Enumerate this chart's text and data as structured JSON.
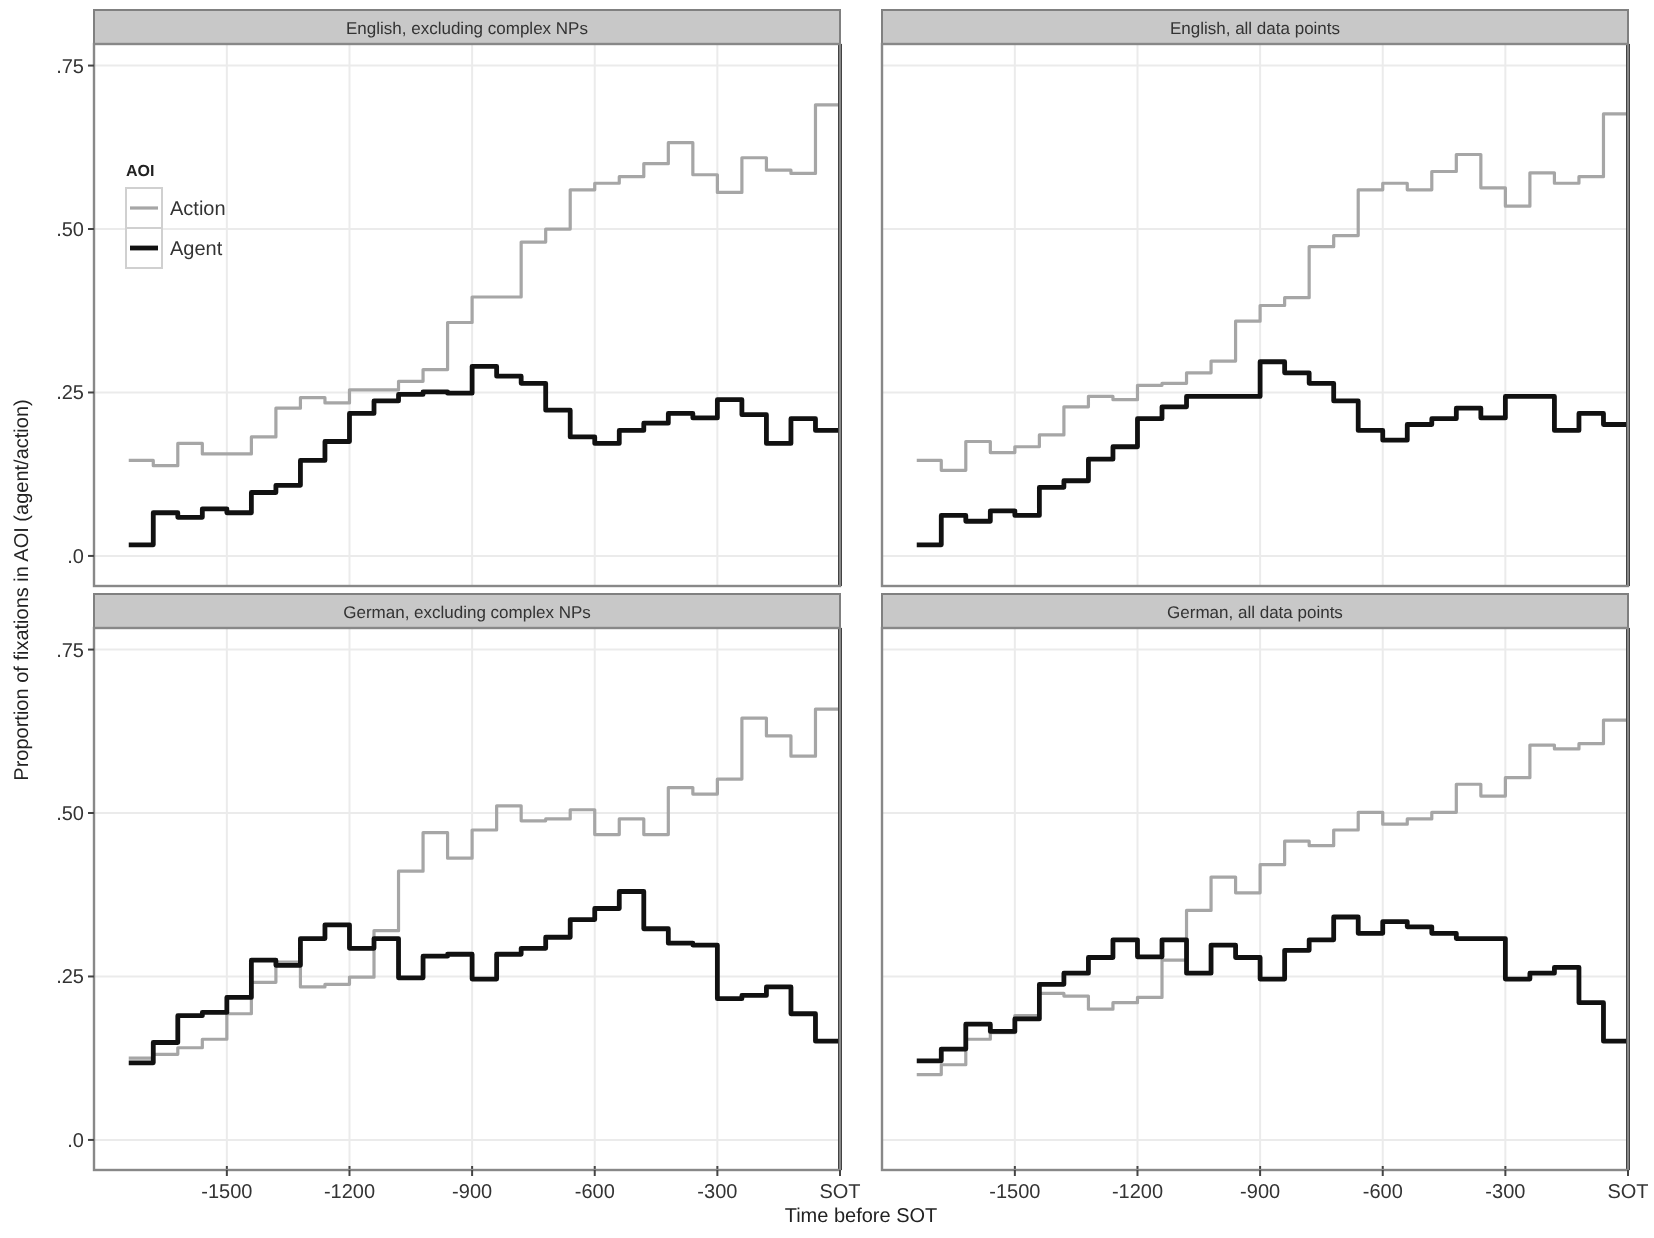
{
  "chart_data": [
    {
      "type": "step",
      "title": "English, excluding complex NPs",
      "ylabel": "Proportion of fixations in AOI (agent/action)",
      "legend_title": "AOI",
      "legend": "top left",
      "grid": true,
      "tick_labels": "y",
      "x": [
        -1740,
        -1680,
        -1620,
        -1560,
        -1500,
        -1440,
        -1380,
        -1320,
        -1260,
        -1200,
        -1140,
        -1080,
        -1020,
        -960,
        -900,
        -840,
        -780,
        -720,
        -660,
        -600,
        -540,
        -480,
        -420,
        -360,
        -300,
        -240,
        -180,
        -120,
        -60,
        0
      ],
      "xlim": [
        -1825,
        0
      ],
      "xticks": [
        -1500,
        -1200,
        -900,
        -600,
        -300
      ],
      "ylim": [
        -0.046,
        0.783
      ],
      "yticks": [
        {
          "value": 0,
          "label": ".0"
        },
        {
          "value": 0.25,
          "label": ".25"
        },
        {
          "value": 0.5,
          "label": ".50"
        },
        {
          "value": 0.75,
          "label": ".75"
        }
      ],
      "ref_lines": [
        {
          "axis": "x",
          "value": 0,
          "color": "#333333"
        }
      ],
      "series": [
        {
          "name": "Action",
          "color": "#a6a6a6",
          "values": [
            0.146,
            0.138,
            0.172,
            0.156,
            0.156,
            0.182,
            0.226,
            0.242,
            0.234,
            0.254,
            0.254,
            0.267,
            0.285,
            0.357,
            0.396,
            0.396,
            0.48,
            0.5,
            0.56,
            0.57,
            0.58,
            0.6,
            0.632,
            0.583,
            0.556,
            0.609,
            0.59,
            0.585,
            0.69,
            0.69
          ]
        },
        {
          "name": "Agent",
          "color": "#111111",
          "values": [
            0.017,
            0.066,
            0.059,
            0.072,
            0.066,
            0.097,
            0.108,
            0.146,
            0.175,
            0.218,
            0.237,
            0.247,
            0.251,
            0.249,
            0.29,
            0.275,
            0.264,
            0.223,
            0.182,
            0.172,
            0.192,
            0.203,
            0.218,
            0.211,
            0.239,
            0.216,
            0.172,
            0.21,
            0.192,
            0.192
          ]
        }
      ]
    },
    {
      "type": "step",
      "title": "English, all data points",
      "grid": true,
      "tick_labels": false,
      "x": [
        -1740,
        -1680,
        -1620,
        -1560,
        -1500,
        -1440,
        -1380,
        -1320,
        -1260,
        -1200,
        -1140,
        -1080,
        -1020,
        -960,
        -900,
        -840,
        -780,
        -720,
        -660,
        -600,
        -540,
        -480,
        -420,
        -360,
        -300,
        -240,
        -180,
        -120,
        -60,
        0
      ],
      "xlim": [
        -1825,
        0
      ],
      "xticks": [
        -1500,
        -1200,
        -900,
        -600,
        -300
      ],
      "ylim": [
        -0.046,
        0.783
      ],
      "yticks": [
        0,
        0.25,
        0.5,
        0.75
      ],
      "ref_lines": [
        {
          "axis": "x",
          "value": 0,
          "color": "#333333"
        }
      ],
      "series": [
        {
          "color": "#a6a6a6",
          "values": [
            0.146,
            0.131,
            0.175,
            0.158,
            0.167,
            0.185,
            0.228,
            0.244,
            0.239,
            0.261,
            0.264,
            0.28,
            0.298,
            0.359,
            0.383,
            0.395,
            0.473,
            0.49,
            0.56,
            0.57,
            0.56,
            0.588,
            0.614,
            0.563,
            0.535,
            0.586,
            0.57,
            0.58,
            0.676,
            0.676
          ]
        },
        {
          "color": "#111111",
          "values": [
            0.017,
            0.062,
            0.053,
            0.069,
            0.062,
            0.105,
            0.115,
            0.148,
            0.167,
            0.21,
            0.228,
            0.244,
            0.244,
            0.244,
            0.297,
            0.28,
            0.264,
            0.237,
            0.192,
            0.177,
            0.201,
            0.21,
            0.226,
            0.211,
            0.244,
            0.244,
            0.192,
            0.218,
            0.201,
            0.201
          ]
        }
      ]
    },
    {
      "type": "step",
      "title": "German, excluding complex NPs",
      "xlabel": "Time before SOT",
      "grid": true,
      "x": [
        -1740,
        -1680,
        -1620,
        -1560,
        -1500,
        -1440,
        -1380,
        -1320,
        -1260,
        -1200,
        -1140,
        -1080,
        -1020,
        -960,
        -900,
        -840,
        -780,
        -720,
        -660,
        -600,
        -540,
        -480,
        -420,
        -360,
        -300,
        -240,
        -180,
        -120,
        -60,
        0
      ],
      "xlim": [
        -1825,
        0
      ],
      "xticks": [
        -1500,
        -1200,
        -900,
        -600,
        -300,
        {
          "value": 0,
          "label": "SOT"
        }
      ],
      "ylim": [
        -0.046,
        0.783
      ],
      "yticks": [
        {
          "value": 0,
          "label": ".0"
        },
        {
          "value": 0.25,
          "label": ".25"
        },
        {
          "value": 0.5,
          "label": ".50"
        },
        {
          "value": 0.75,
          "label": ".75"
        }
      ],
      "ref_lines": [
        {
          "axis": "x",
          "value": 0,
          "color": "#333333"
        }
      ],
      "series": [
        {
          "color": "#a6a6a6",
          "values": [
            0.125,
            0.131,
            0.141,
            0.154,
            0.193,
            0.241,
            0.272,
            0.234,
            0.238,
            0.249,
            0.32,
            0.411,
            0.47,
            0.431,
            0.474,
            0.511,
            0.488,
            0.491,
            0.505,
            0.467,
            0.491,
            0.467,
            0.539,
            0.529,
            0.552,
            0.645,
            0.618,
            0.587,
            0.659,
            0.659
          ]
        },
        {
          "color": "#111111",
          "values": [
            0.118,
            0.149,
            0.19,
            0.195,
            0.218,
            0.275,
            0.267,
            0.308,
            0.329,
            0.293,
            0.308,
            0.248,
            0.281,
            0.284,
            0.246,
            0.284,
            0.293,
            0.31,
            0.337,
            0.354,
            0.38,
            0.323,
            0.301,
            0.298,
            0.216,
            0.221,
            0.234,
            0.193,
            0.151,
            0.151
          ]
        }
      ]
    },
    {
      "type": "step",
      "title": "German, all data points",
      "grid": true,
      "tick_labels": "x",
      "x": [
        -1740,
        -1680,
        -1620,
        -1560,
        -1500,
        -1440,
        -1380,
        -1320,
        -1260,
        -1200,
        -1140,
        -1080,
        -1020,
        -960,
        -900,
        -840,
        -780,
        -720,
        -660,
        -600,
        -540,
        -480,
        -420,
        -360,
        -300,
        -240,
        -180,
        -120,
        -60,
        0
      ],
      "xlim": [
        -1825,
        0
      ],
      "xticks": [
        -1500,
        -1200,
        -900,
        -600,
        -300,
        {
          "value": 0,
          "label": "SOT"
        }
      ],
      "ylim": [
        -0.046,
        0.783
      ],
      "yticks": [
        0,
        0.25,
        0.5,
        0.75
      ],
      "ref_lines": [
        {
          "axis": "x",
          "value": 0,
          "color": "#333333"
        }
      ],
      "series": [
        {
          "color": "#a6a6a6",
          "values": [
            0.1,
            0.115,
            0.154,
            0.164,
            0.19,
            0.224,
            0.22,
            0.2,
            0.21,
            0.218,
            0.275,
            0.351,
            0.402,
            0.378,
            0.421,
            0.457,
            0.45,
            0.474,
            0.501,
            0.483,
            0.491,
            0.501,
            0.544,
            0.526,
            0.554,
            0.604,
            0.598,
            0.606,
            0.642,
            0.642
          ]
        },
        {
          "color": "#111111",
          "values": [
            0.121,
            0.139,
            0.177,
            0.166,
            0.185,
            0.238,
            0.255,
            0.279,
            0.306,
            0.28,
            0.306,
            0.255,
            0.298,
            0.279,
            0.246,
            0.29,
            0.306,
            0.341,
            0.316,
            0.334,
            0.326,
            0.316,
            0.308,
            0.308,
            0.246,
            0.255,
            0.264,
            0.21,
            0.151,
            0.151
          ]
        }
      ]
    }
  ]
}
